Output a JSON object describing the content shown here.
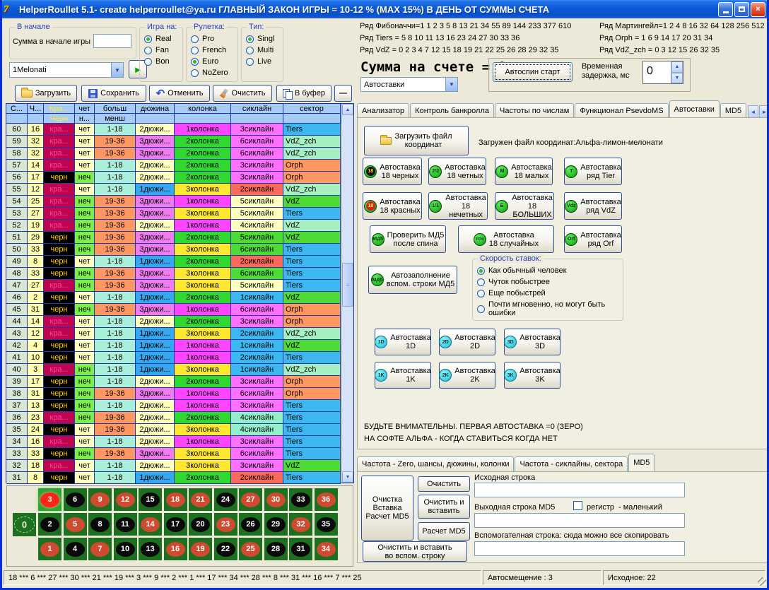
{
  "window": {
    "title": "HelperRoullet 5.1- create helperroullet@ya.ru ГЛАВНЫЙ ЗАКОН ИГРЫ = 10-12 % (MAX 15%) В ДЕНЬ ОТ СУММЫ СЧЕТА"
  },
  "palette": {
    "rownum": "#D9E6D3",
    "numcell": "#FFFFB0",
    "redcell": "#C00550",
    "redtext": "#FF44A6",
    "blacktext": "#FFCC00",
    "lightyellow": "#FFFFC0",
    "green2": "#7CEE4C",
    "aqua18": "#A9EFD9",
    "orange": "#FF9763",
    "dozblue": "#35A8F2",
    "violet": "#EE7CEE",
    "colmagenta": "#FF45FF",
    "colgreen": "#2FD92F",
    "colyellow": "#FFE930",
    "cyan": "#3DB7F0",
    "magenta": "#FF70FF",
    "red": "#F9695C",
    "green": "#4FDB35",
    "aqua": "#93EFC9",
    "mint": "#A6EFC3"
  },
  "top_left": {
    "start_group": {
      "label": "В начале",
      "field_label": "Сумма в начале игры",
      "field_value": ""
    },
    "preset_combo": {
      "value": "1Melonati"
    },
    "groups": [
      {
        "label": "Игра на:",
        "options": [
          "Real",
          "Fan",
          "Bon"
        ],
        "selected": 0
      },
      {
        "label": "Рулетка:",
        "options": [
          "Pro",
          "French",
          "Euro",
          "NoZero"
        ],
        "selected": 2
      },
      {
        "label": "Тип:",
        "options": [
          "Singl",
          "Multi",
          "Live"
        ],
        "selected": 0
      }
    ],
    "toolbar": [
      {
        "icon": "open-folder-icon",
        "label": "Загрузить"
      },
      {
        "icon": "save-icon",
        "label": "Сохранить"
      },
      {
        "icon": "undo-icon",
        "label": "Отменить"
      },
      {
        "icon": "clean-icon",
        "label": "Очистить"
      },
      {
        "icon": "copy-icon",
        "label": "В буфер"
      }
    ],
    "collapse_button": "—"
  },
  "series": {
    "left": [
      "Ряд Фибоначчи=1 1 2 3 5 8 13 21 34 55 89 144 233 377 610",
      "Ряд Tiers = 5 8 10 11 13 16 23 24 27 30 33 36",
      "Ряд VdZ = 0 2 3 4 7 12 15 18 19 21 22 25 26 28 29 32 35"
    ],
    "right": [
      "Ряд Мартингейл=1 2 4 8 16 32 64 128 256 512",
      "Ряд Orph = 1 6 9 14 17 20 31 34",
      "Ряд VdZ_zch = 0 3 12 15 26 32 35"
    ]
  },
  "account": {
    "sum_label": "Сумма на счете = 0",
    "mode_combo": "Автоставки",
    "autospin_button": "Автоспин старт",
    "delay_label": "Временная задержка, мс",
    "delay_value": "0"
  },
  "tabs": {
    "items": [
      "Анализатор",
      "Контроль банкролла",
      "Частоты по числам",
      "Функционал PsevdoMS",
      "Автоставки",
      "MD5"
    ],
    "active": 4
  },
  "autostavki": {
    "load_button": "Загрузить файл\nкоординат",
    "loaded_label": "Загружен файл координат:Альфа-лимон-мелонати",
    "bet_buttons": [
      {
        "icon": "18",
        "style": "k",
        "label": "Автоставка\n18 черных"
      },
      {
        "icon": "2/2",
        "style": "g",
        "label": "Автоставка\n18 четных"
      },
      {
        "icon": "M",
        "style": "g",
        "label": "Автоставка\n18 малых"
      },
      {
        "icon": "T",
        "style": "g",
        "label": "Автоставка\nряд Tier"
      },
      {
        "icon": "18",
        "style": "r",
        "label": "Автоставка\n18 красных"
      },
      {
        "icon": "1/1",
        "style": "g",
        "label": "Автоставка\n18 нечетных"
      },
      {
        "icon": "Б",
        "style": "g",
        "label": "Автоставка\n18 БОЛЬШИХ"
      },
      {
        "icon": "Vdz",
        "style": "g",
        "label": "Автоставка\nряд VdZ"
      },
      {
        "icon": "МД5",
        "style": "g",
        "label": "Проверить МД5\nпосле спина"
      },
      {
        "icon": "гсч",
        "style": "g",
        "label": "Автоставка\n18 случайных"
      },
      {
        "icon": "Orf",
        "style": "g",
        "label": "Автоставка\nряд Orf"
      }
    ],
    "autofill_button": {
      "icon": "МД5",
      "style": "g",
      "label": "Автозаполнение\nвспом. строки МД5"
    },
    "speed_group": {
      "label": "Скорость ставок:",
      "options": [
        "Как обычный человек",
        "Чуток побыстрее",
        "Еще побыстрей",
        "Почти мгновенно, но могут быть ошибки"
      ],
      "selected": 0
    },
    "dim_buttons": [
      {
        "icon": "1D",
        "label": "Автоставка\n1D"
      },
      {
        "icon": "2D",
        "label": "Автоставка\n2D"
      },
      {
        "icon": "3D",
        "label": "Автоставка\n3D"
      },
      {
        "icon": "1K",
        "label": "Автоставка\n1K"
      },
      {
        "icon": "2K",
        "label": "Автоставка\n2K"
      },
      {
        "icon": "3K",
        "label": "Автоставка\n3K"
      }
    ],
    "warning": "БУДЬТЕ ВНИМАТЕЛЬНЫ. ПЕРВАЯ АВТОСТАВКА =0 (ЗЕРО)\nНА СОФТЕ АЛЬФА - КОГДА СТАВИТЬСЯ КОГДА НЕТ"
  },
  "bottom_tabs": {
    "items": [
      "Частота - Zero, шансы, дюжины, колонки",
      "Частота - сиклайны, сектора",
      "MD5"
    ],
    "active": 2
  },
  "md5": {
    "big_button": "Очистка\nВставка\nРасчет MD5",
    "clear_button": "Очистить",
    "clear_paste_button": "Очистить и\nвставить",
    "calc_button": "Расчет MD5",
    "clear_paste_aux_button": "Очистить и  вставить\nво вспом. строку",
    "source_label": "Исходная строка",
    "source_value": "",
    "out_label": "Выходная строка MD5",
    "out_value": "",
    "register_label": "регистр",
    "register_note": "- маленький",
    "aux_label": "Вспомогателная строка: сюда можно все скопировать",
    "aux_value": ""
  },
  "table": {
    "header_line1": [
      "С...",
      "Ч...",
      "Кра...",
      "чет",
      "больш",
      "дюжина",
      "колонка",
      "сиклайн",
      "сектор"
    ],
    "header_line2": [
      "",
      "",
      "Черн",
      "н...",
      "менш",
      "",
      "",
      "",
      ""
    ],
    "rows": [
      [
        60,
        16,
        "r",
        "e",
        "1-18",
        2,
        1,
        3,
        "magenta",
        "Tiers",
        "cyan"
      ],
      [
        59,
        32,
        "r",
        "e",
        "19-36",
        3,
        2,
        6,
        "magenta",
        "VdZ_zch",
        "mint"
      ],
      [
        58,
        32,
        "r",
        "e",
        "19-36",
        3,
        2,
        6,
        "magenta",
        "VdZ_zch",
        "mint"
      ],
      [
        57,
        14,
        "r",
        "e",
        "1-18",
        2,
        2,
        3,
        "magenta",
        "Orph",
        "orange"
      ],
      [
        56,
        17,
        "b",
        "o",
        "1-18",
        2,
        2,
        3,
        "magenta",
        "Orph",
        "orange"
      ],
      [
        55,
        12,
        "r",
        "e",
        "1-18",
        1,
        3,
        2,
        "red",
        "VdZ_zch",
        "mint"
      ],
      [
        54,
        25,
        "r",
        "o",
        "19-36",
        3,
        1,
        5,
        "lightyellow",
        "VdZ",
        "green"
      ],
      [
        53,
        27,
        "r",
        "o",
        "19-36",
        3,
        3,
        5,
        "lightyellow",
        "Tiers",
        "cyan"
      ],
      [
        52,
        19,
        "r",
        "o",
        "19-36",
        2,
        1,
        4,
        "lightyellow",
        "VdZ",
        "mint"
      ],
      [
        51,
        29,
        "b",
        "o",
        "19-36",
        3,
        2,
        5,
        "green",
        "VdZ",
        "green"
      ],
      [
        50,
        33,
        "b",
        "o",
        "19-36",
        3,
        3,
        6,
        "green",
        "Tiers",
        "cyan"
      ],
      [
        49,
        8,
        "b",
        "e",
        "1-18",
        1,
        2,
        2,
        "red",
        "Tiers",
        "cyan"
      ],
      [
        48,
        33,
        "b",
        "o",
        "19-36",
        3,
        3,
        6,
        "green",
        "Tiers",
        "cyan"
      ],
      [
        47,
        27,
        "r",
        "o",
        "19-36",
        3,
        3,
        5,
        "lightyellow",
        "Tiers",
        "cyan"
      ],
      [
        46,
        2,
        "b",
        "e",
        "1-18",
        1,
        2,
        1,
        "cyan",
        "VdZ",
        "green"
      ],
      [
        45,
        31,
        "b",
        "o",
        "19-36",
        3,
        1,
        6,
        "magenta",
        "Orph",
        "orange"
      ],
      [
        44,
        14,
        "r",
        "e",
        "1-18",
        2,
        2,
        3,
        "magenta",
        "Orph",
        "orange"
      ],
      [
        43,
        12,
        "r",
        "e",
        "1-18",
        1,
        3,
        2,
        "cyan",
        "VdZ_zch",
        "mint"
      ],
      [
        42,
        4,
        "b",
        "e",
        "1-18",
        1,
        1,
        1,
        "cyan",
        "VdZ",
        "green"
      ],
      [
        41,
        10,
        "b",
        "e",
        "1-18",
        1,
        1,
        2,
        "cyan",
        "Tiers",
        "cyan"
      ],
      [
        40,
        3,
        "r",
        "o",
        "1-18",
        1,
        3,
        1,
        "cyan",
        "VdZ_zch",
        "mint"
      ],
      [
        39,
        17,
        "b",
        "o",
        "1-18",
        2,
        2,
        3,
        "magenta",
        "Orph",
        "orange"
      ],
      [
        38,
        31,
        "b",
        "o",
        "19-36",
        3,
        1,
        6,
        "magenta",
        "Orph",
        "orange"
      ],
      [
        37,
        13,
        "b",
        "o",
        "1-18",
        2,
        1,
        3,
        "magenta",
        "Tiers",
        "cyan"
      ],
      [
        36,
        23,
        "r",
        "o",
        "19-36",
        2,
        2,
        4,
        "aqua",
        "Tiers",
        "cyan"
      ],
      [
        35,
        24,
        "b",
        "e",
        "19-36",
        2,
        3,
        4,
        "aqua",
        "Tiers",
        "cyan"
      ],
      [
        34,
        16,
        "r",
        "e",
        "1-18",
        2,
        1,
        3,
        "magenta",
        "Tiers",
        "cyan"
      ],
      [
        33,
        33,
        "b",
        "o",
        "19-36",
        3,
        3,
        6,
        "magenta",
        "Tiers",
        "cyan"
      ],
      [
        32,
        18,
        "r",
        "e",
        "1-18",
        2,
        3,
        3,
        "magenta",
        "VdZ",
        "green"
      ],
      [
        31,
        8,
        "b",
        "e",
        "1-18",
        1,
        2,
        2,
        "red",
        "Tiers",
        "cyan"
      ]
    ],
    "labels": {
      "red": "кра...",
      "black": "черн",
      "even": "чет",
      "odd": "неч",
      "dozen": "дюжи...",
      "column": "колонка",
      "sixline": "сиклайн"
    }
  },
  "roulette": {
    "zero": "0",
    "rows": [
      [
        3,
        6,
        9,
        12,
        15,
        18,
        21,
        24,
        27,
        30,
        33,
        36
      ],
      [
        2,
        5,
        8,
        11,
        14,
        17,
        20,
        23,
        26,
        29,
        32,
        35
      ],
      [
        1,
        4,
        7,
        10,
        13,
        16,
        19,
        22,
        25,
        28,
        31,
        34
      ]
    ],
    "red_numbers": [
      1,
      3,
      5,
      7,
      9,
      12,
      14,
      16,
      18,
      19,
      21,
      23,
      25,
      27,
      30,
      32,
      34,
      36
    ],
    "highlight": 3
  },
  "statusbar": {
    "spins": "18 *** 6 *** 27 *** 30 *** 21 *** 19 *** 3 *** 9 *** 2 *** 1 *** 17 *** 34 *** 28 *** 8 *** 31 *** 16 *** 7 *** 25",
    "autoshift": "Автосмещение : 3",
    "source": "Исходное: 22"
  }
}
